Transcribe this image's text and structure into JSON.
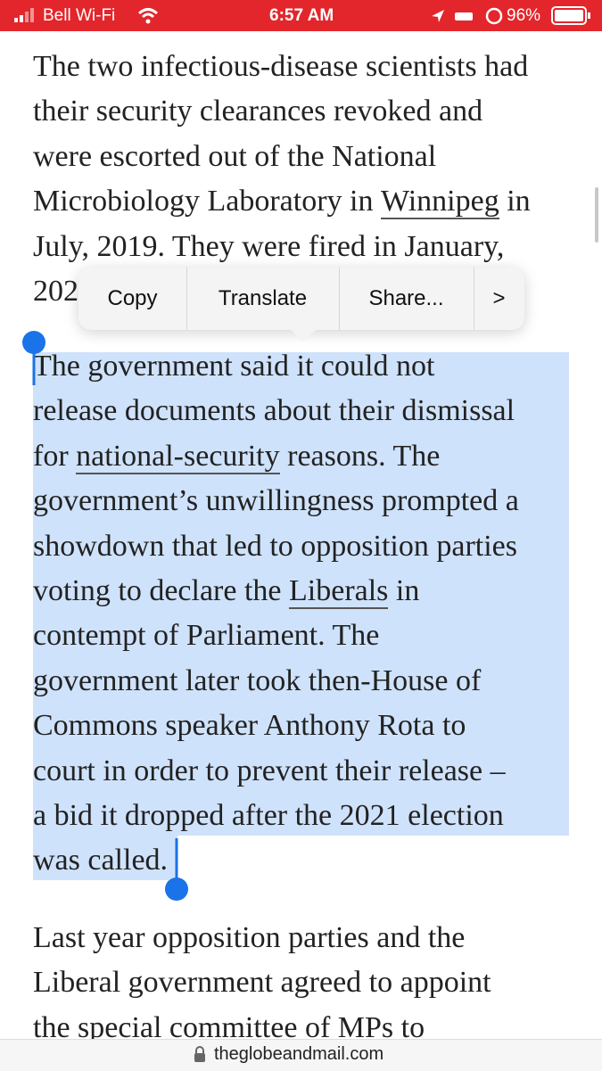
{
  "status_bar": {
    "carrier": "Bell Wi-Fi",
    "time": "6:57 AM",
    "battery": "96%"
  },
  "article": {
    "paragraphs": [
      {
        "selected": false,
        "lines": [
          [
            "The two infectious-disease scientists had"
          ],
          [
            "their security clearances revoked and"
          ],
          [
            "were escorted out of the National"
          ],
          [
            "Microbiology Laboratory in ",
            {
              "link": "Winnipeg"
            },
            " in"
          ],
          [
            "July, 2019. They were fired in January,"
          ],
          [
            "202"
          ]
        ]
      },
      {
        "selected": true,
        "lines": [
          [
            "The government said it could not"
          ],
          [
            "release documents about their dismissal"
          ],
          [
            "for ",
            {
              "link": "national-security"
            },
            " reasons. The"
          ],
          [
            "government’s unwillingness prompted a"
          ],
          [
            "showdown that led to opposition parties"
          ],
          [
            "voting to declare the ",
            {
              "link": "Liberals"
            },
            " in"
          ],
          [
            "contempt of Parliament. The"
          ],
          [
            "government later took then-House of"
          ],
          [
            "Commons speaker Anthony Rota to"
          ],
          [
            "court in order to prevent their release –"
          ],
          [
            "a bid it dropped after the 2021 election"
          ],
          [
            "was called."
          ]
        ]
      },
      {
        "selected": false,
        "lines": [
          [
            "Last year opposition parties and the"
          ],
          [
            "Liberal government agreed to appoint"
          ],
          [
            "the special committee of MPs to"
          ]
        ]
      }
    ]
  },
  "context_menu": {
    "items": [
      "Copy",
      "Translate",
      "Share...",
      ">"
    ]
  },
  "address_bar": {
    "url": "theglobeandmail.com"
  }
}
